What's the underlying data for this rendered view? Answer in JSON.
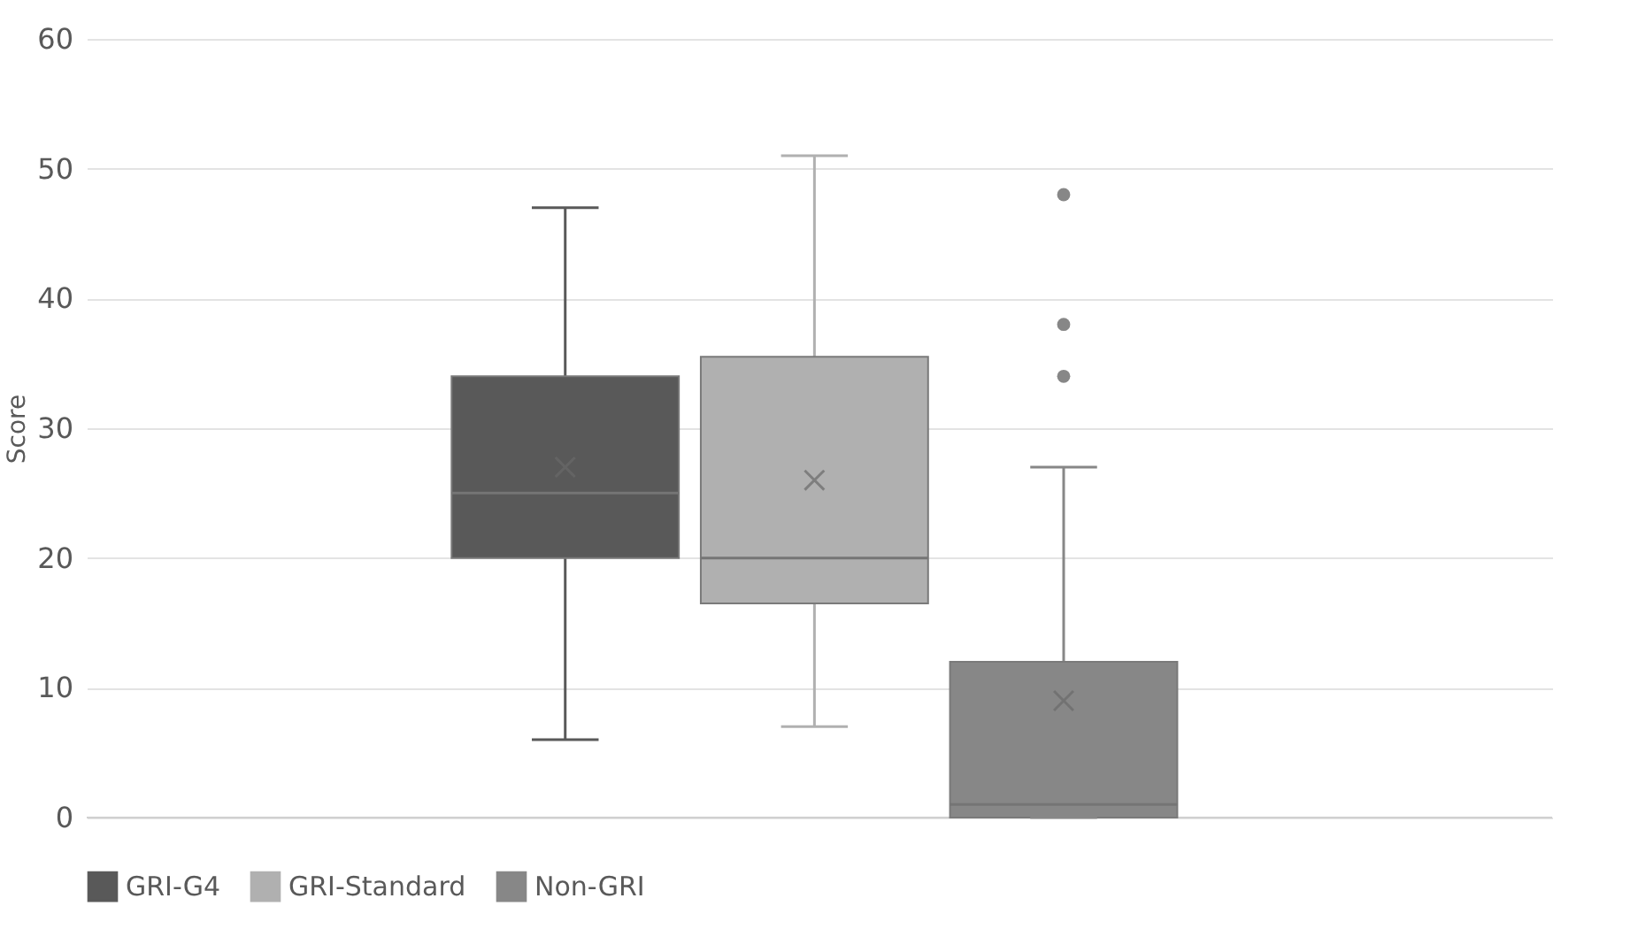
{
  "chart_data": {
    "type": "box",
    "ylabel": "Score",
    "categories": [
      null
    ],
    "series": [
      {
        "name": "GRI-G4",
        "color": "#595959",
        "boxes": [
          {
            "low": 6,
            "q1": 20,
            "median": 25,
            "q3": 34,
            "high": 47,
            "mean": 27
          }
        ]
      },
      {
        "name": "GRI-Standard",
        "color": "#b0b0b0",
        "boxes": [
          {
            "low": 7,
            "q1": 16.5,
            "median": 20,
            "q3": 35.5,
            "high": 51,
            "mean": 26
          }
        ]
      },
      {
        "name": "Non-GRI",
        "color": "#878787",
        "boxes": [
          {
            "low": 0,
            "q1": 0,
            "median": 1,
            "q3": 12,
            "high": 27,
            "mean": 9,
            "outliers": [
              34,
              38,
              48
            ]
          }
        ]
      }
    ],
    "ylim": [
      0,
      60
    ],
    "yticks": [
      0,
      10,
      20,
      30,
      40,
      50,
      60
    ],
    "grid": "y",
    "legend": "bottom",
    "marker": "cross"
  }
}
